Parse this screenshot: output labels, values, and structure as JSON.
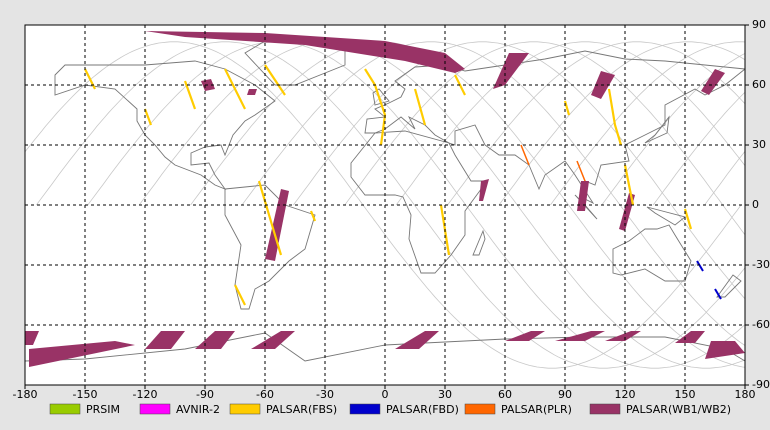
{
  "map": {
    "xlim": [
      -180,
      180
    ],
    "ylim": [
      -90,
      90
    ],
    "xticks": [
      -180,
      -150,
      -120,
      -90,
      -60,
      -30,
      0,
      30,
      60,
      90,
      120,
      150,
      180
    ],
    "yticks": [
      -90,
      -60,
      -30,
      0,
      30,
      60,
      90
    ],
    "grid": true,
    "legend": [
      {
        "name": "PRSIM",
        "color": "#99cc00"
      },
      {
        "name": "AVNIR-2",
        "color": "#ff00ff"
      },
      {
        "name": "PALSAR(FBS)",
        "color": "#ffcc00"
      },
      {
        "name": "PALSAR(FBD)",
        "color": "#0000cc"
      },
      {
        "name": "PALSAR(PLR)",
        "color": "#ff6600"
      },
      {
        "name": "PALSAR(WB1/WB2)",
        "color": "#993366"
      }
    ]
  }
}
